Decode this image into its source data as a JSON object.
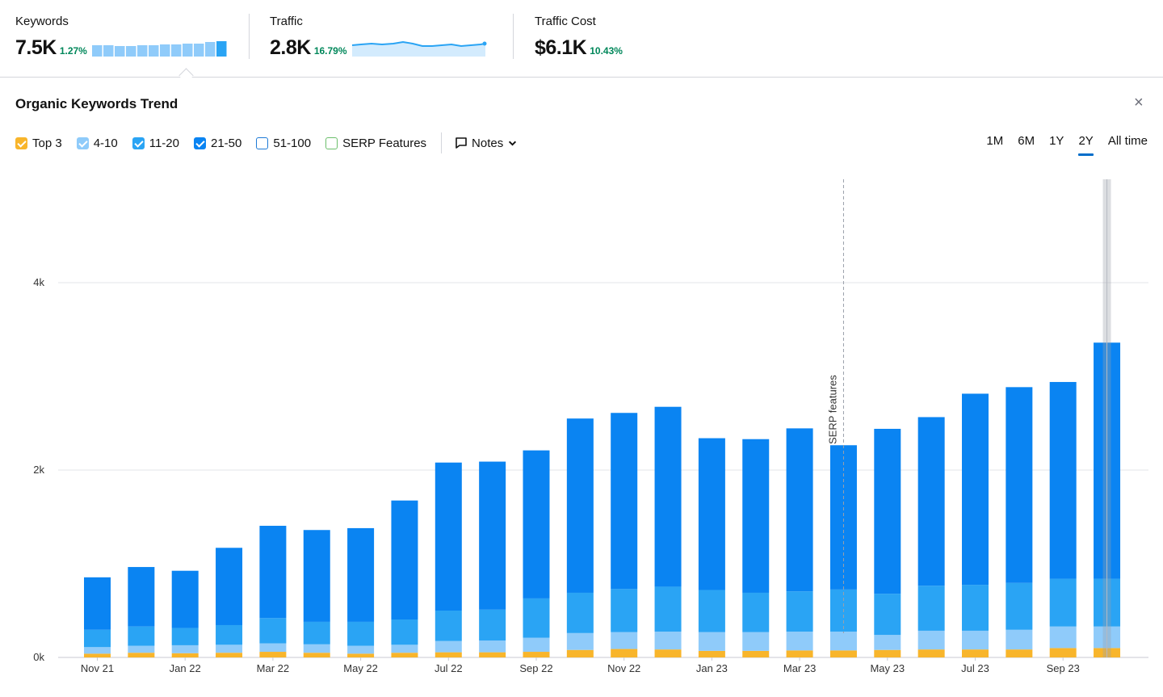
{
  "metrics": {
    "keywords": {
      "label": "Keywords",
      "value": "7.5K",
      "change": "1.27%"
    },
    "traffic": {
      "label": "Traffic",
      "value": "2.8K",
      "change": "16.79%"
    },
    "traffic_cost": {
      "label": "Traffic Cost",
      "value": "$6.1K",
      "change": "10.43%"
    }
  },
  "panel": {
    "title": "Organic Keywords Trend",
    "close_icon": "×"
  },
  "filters": [
    {
      "label": "Top 3",
      "checked": true,
      "color": "#f8b52b"
    },
    {
      "label": "4-10",
      "checked": true,
      "color": "#8fcbfa"
    },
    {
      "label": "11-20",
      "checked": true,
      "color": "#2aa4f4"
    },
    {
      "label": "21-50",
      "checked": true,
      "color": "#0a84f2"
    },
    {
      "label": "51-100",
      "checked": false,
      "color": "#1e7ad6"
    },
    {
      "label": "SERP Features",
      "checked": false,
      "color": "#6cbf6c"
    }
  ],
  "notes_label": "Notes",
  "ranges": [
    {
      "label": "1M",
      "active": false
    },
    {
      "label": "6M",
      "active": false
    },
    {
      "label": "1Y",
      "active": false
    },
    {
      "label": "2Y",
      "active": true
    },
    {
      "label": "All time",
      "active": false
    }
  ],
  "colors": {
    "top3": "#f8b52b",
    "r4_10": "#8fcbfa",
    "r11_20": "#2aa4f4",
    "r21_50": "#0a84f2",
    "grid": "#e3e4e8",
    "positive": "#00875a"
  },
  "chart_data": {
    "type": "bar",
    "stacked": true,
    "categories": [
      "Nov 21",
      "Dec 21",
      "Jan 22",
      "Feb 22",
      "Mar 22",
      "Apr 22",
      "May 22",
      "Jun 22",
      "Jul 22",
      "Aug 22",
      "Sep 22",
      "Oct 22",
      "Nov 22",
      "Dec 22",
      "Jan 23",
      "Feb 23",
      "Mar 23",
      "Apr 23",
      "May 23",
      "Jun 23",
      "Jul 23",
      "Aug 23",
      "Sep 23",
      "Oct 23"
    ],
    "x_tick_labels": [
      "Nov 21",
      "Jan 22",
      "Mar 22",
      "May 22",
      "Jul 22",
      "Sep 22",
      "Nov 22",
      "Jan 23",
      "Mar 23",
      "May 23",
      "Jul 23",
      "Sep 23"
    ],
    "series": [
      {
        "name": "Top 3",
        "values": [
          40,
          50,
          45,
          50,
          60,
          50,
          40,
          50,
          55,
          55,
          60,
          80,
          90,
          85,
          70,
          70,
          75,
          75,
          80,
          85,
          85,
          85,
          100,
          100
        ]
      },
      {
        "name": "4-10",
        "values": [
          70,
          75,
          85,
          85,
          90,
          90,
          85,
          85,
          120,
          125,
          150,
          180,
          180,
          190,
          200,
          200,
          200,
          200,
          160,
          200,
          200,
          210,
          230,
          230
        ]
      },
      {
        "name": "11-20",
        "values": [
          185,
          205,
          185,
          210,
          270,
          240,
          255,
          270,
          325,
          330,
          420,
          430,
          460,
          480,
          450,
          420,
          430,
          450,
          440,
          480,
          490,
          500,
          510,
          510
        ]
      },
      {
        "name": "21-50",
        "values": [
          560,
          635,
          610,
          825,
          985,
          980,
          1000,
          1270,
          1580,
          1580,
          1580,
          1860,
          1880,
          1920,
          1620,
          1640,
          1740,
          1540,
          1760,
          1800,
          2040,
          2090,
          2100,
          2520
        ]
      }
    ],
    "yticks": [
      0,
      2000,
      4000
    ],
    "ytick_labels": [
      "0k",
      "2k",
      "4k"
    ],
    "ylim": [
      0,
      5100
    ],
    "annotation": {
      "text": "SERP features",
      "at": "Apr 23"
    },
    "highlight": "Oct 23",
    "grid": true
  }
}
